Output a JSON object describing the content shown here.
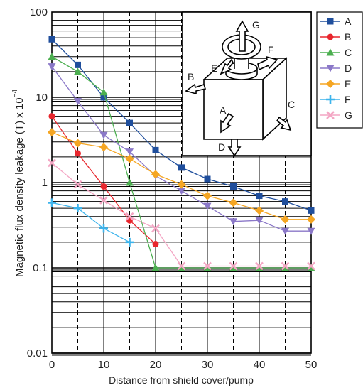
{
  "chart_data": {
    "type": "line",
    "title": "",
    "xlabel": "Distance from shield cover/pump",
    "ylabel": "Magnetic flux density leakage  (T)  x 10",
    "ylabel_exponent": "−4",
    "yscale": "log",
    "xlim": [
      0,
      50
    ],
    "ylim": [
      0.01,
      100
    ],
    "x_ticks": [
      "0",
      "10",
      "20",
      "30",
      "40",
      "50"
    ],
    "y_ticks": [
      "0.01",
      "0.1",
      "1",
      "10",
      "100"
    ],
    "grid": true,
    "legend_position": "right",
    "series": [
      {
        "name": "A",
        "color": "#1f4e9c",
        "marker": "square",
        "x": [
          0,
          5,
          10,
          15,
          20,
          25,
          30,
          35,
          40,
          45,
          50
        ],
        "y": [
          48,
          24,
          10,
          5,
          2.4,
          1.5,
          1.1,
          0.9,
          0.7,
          0.6,
          0.47
        ]
      },
      {
        "name": "B",
        "color": "#e8262d",
        "marker": "circle",
        "x": [
          0,
          5,
          10,
          15,
          20
        ],
        "y": [
          6,
          2.2,
          0.9,
          0.36,
          0.19
        ]
      },
      {
        "name": "C",
        "color": "#4caf50",
        "marker": "triangle-up",
        "x": [
          0,
          5,
          10,
          15,
          20,
          25,
          30,
          35,
          40,
          45,
          50
        ],
        "y": [
          30,
          20,
          11.5,
          1,
          0.1,
          0.1,
          0.1,
          0.1,
          0.1,
          0.1,
          0.1
        ]
      },
      {
        "name": "D",
        "color": "#8b78c8",
        "marker": "triangle-down",
        "x": [
          0,
          5,
          10,
          15,
          20,
          25,
          30,
          35,
          40,
          45,
          50
        ],
        "y": [
          23,
          9,
          3.6,
          2.3,
          1.2,
          0.8,
          0.53,
          0.35,
          0.36,
          0.27,
          0.27
        ]
      },
      {
        "name": "E",
        "color": "#f5a623",
        "marker": "diamond",
        "x": [
          0,
          5,
          10,
          15,
          20,
          25,
          30,
          35,
          40,
          45,
          50
        ],
        "y": [
          3.9,
          2.9,
          2.6,
          1.9,
          1.25,
          0.95,
          0.7,
          0.58,
          0.47,
          0.37,
          0.37
        ]
      },
      {
        "name": "F",
        "color": "#3db4ec",
        "marker": "plus",
        "x": [
          0,
          5,
          10,
          15
        ],
        "y": [
          0.58,
          0.5,
          0.29,
          0.2
        ]
      },
      {
        "name": "G",
        "color": "#f4a6c4",
        "marker": "x",
        "x": [
          0,
          5,
          10,
          15,
          20,
          25,
          30,
          35,
          40,
          45,
          50
        ],
        "y": [
          1.7,
          0.95,
          0.62,
          0.4,
          0.29,
          0.105,
          0.105,
          0.105,
          0.105,
          0.105,
          0.105
        ]
      }
    ],
    "inset_labels": [
      "G",
      "F",
      "E",
      "B",
      "A",
      "C",
      "D"
    ]
  }
}
